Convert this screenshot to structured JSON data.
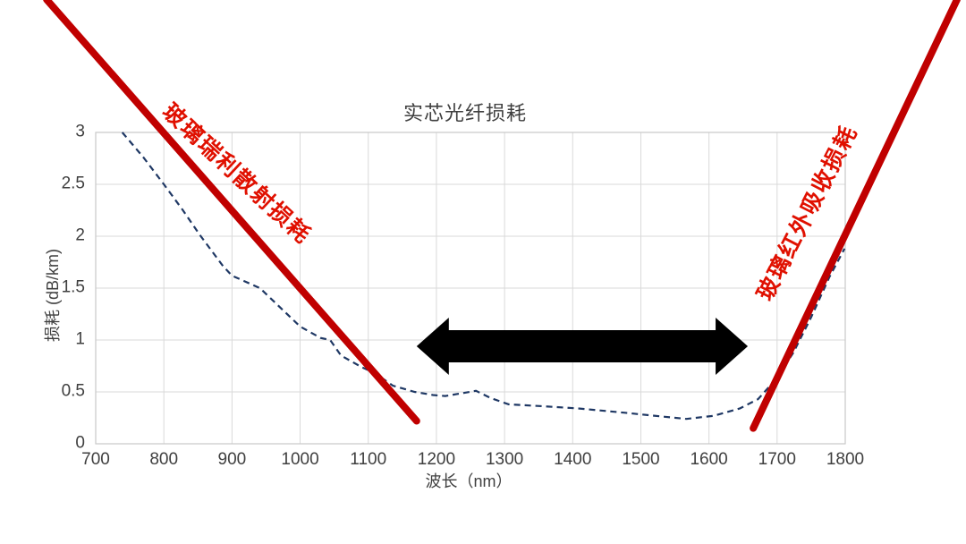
{
  "chart_data": {
    "type": "line",
    "title": "实芯光纤损耗",
    "xlabel": "波长（nm）",
    "ylabel": "损耗 (dB/km)",
    "xlim": [
      700,
      1800
    ],
    "ylim": [
      0,
      3
    ],
    "xticks": [
      700,
      800,
      900,
      1000,
      1100,
      1200,
      1300,
      1400,
      1500,
      1600,
      1700,
      1800
    ],
    "yticks": [
      0,
      0.5,
      1,
      1.5,
      2,
      2.5,
      3
    ],
    "grid": true,
    "legend_position": "none",
    "colors": {
      "grid": "#d9d9d9",
      "plot_border": "#c9c9c9",
      "axis_text": "#3f3f3f",
      "fiber_curve": "#1f3864",
      "annotation_line": "#c00000",
      "annotation_label": "#e01000",
      "arrow": "#000000"
    },
    "series": [
      {
        "name": "fiber-loss-curve",
        "style": "dashed",
        "color": "#1f3864",
        "points": [
          [
            739,
            3.0
          ],
          [
            770,
            2.76
          ],
          [
            800,
            2.5
          ],
          [
            828,
            2.25
          ],
          [
            852,
            2.02
          ],
          [
            887,
            1.71
          ],
          [
            900,
            1.62
          ],
          [
            941,
            1.5
          ],
          [
            1000,
            1.13
          ],
          [
            1030,
            1.02
          ],
          [
            1044,
            1.0
          ],
          [
            1060,
            0.85
          ],
          [
            1090,
            0.74
          ],
          [
            1110,
            0.68
          ],
          [
            1136,
            0.56
          ],
          [
            1168,
            0.5
          ],
          [
            1195,
            0.47
          ],
          [
            1213,
            0.46
          ],
          [
            1240,
            0.49
          ],
          [
            1258,
            0.51
          ],
          [
            1280,
            0.44
          ],
          [
            1306,
            0.38
          ],
          [
            1360,
            0.36
          ],
          [
            1410,
            0.34
          ],
          [
            1475,
            0.3
          ],
          [
            1535,
            0.26
          ],
          [
            1567,
            0.24
          ],
          [
            1607,
            0.27
          ],
          [
            1645,
            0.34
          ],
          [
            1672,
            0.43
          ],
          [
            1698,
            0.62
          ],
          [
            1724,
            0.88
          ],
          [
            1750,
            1.22
          ],
          [
            1777,
            1.61
          ],
          [
            1799,
            1.88
          ]
        ]
      }
    ],
    "annotation_lines": [
      {
        "name": "rayleigh-scattering-line",
        "label": "玻璃瑞利散射损耗",
        "color": "#c00000",
        "from": [
          628,
          4.28
        ],
        "to": [
          1171,
          0.22
        ]
      },
      {
        "name": "infrared-absorption-line",
        "label": "玻璃红外吸收损耗",
        "color": "#c00000",
        "from": [
          1665,
          0.15
        ],
        "to": [
          1964,
          4.28
        ]
      }
    ],
    "arrow": {
      "type": "double-headed-horizontal",
      "from_nm": 1171,
      "to_nm": 1657,
      "loss_level": 0.94,
      "color": "#000000"
    }
  }
}
